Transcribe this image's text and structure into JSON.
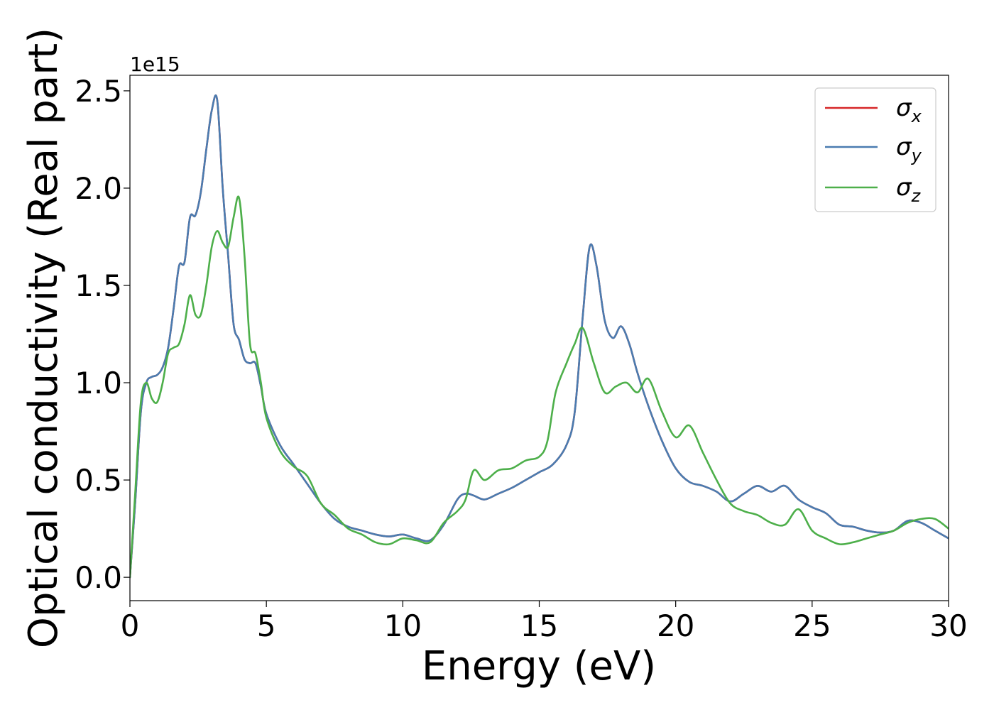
{
  "chart_data": {
    "type": "line",
    "xlabel": "Energy (eV)",
    "ylabel": "Optical conductivity (Real part)",
    "offset_text": "1e15",
    "xlim": [
      0,
      30
    ],
    "ylim": [
      -0.12,
      2.58
    ],
    "y_scale_factor": 1000000000000000.0,
    "xticks": [
      0,
      5,
      10,
      15,
      20,
      25,
      30
    ],
    "xtick_labels": [
      "0",
      "5",
      "10",
      "15",
      "20",
      "25",
      "30"
    ],
    "yticks": [
      0.0,
      0.5,
      1.0,
      1.5,
      2.0,
      2.5
    ],
    "ytick_labels": [
      "0.0",
      "0.5",
      "1.0",
      "1.5",
      "2.0",
      "2.5"
    ],
    "grid": false,
    "legend_position": "top-right",
    "series": [
      {
        "name": "σx",
        "symbol": "σ",
        "subscript": "x",
        "color": "#d62728",
        "x": [
          0,
          0.2,
          0.4,
          0.6,
          0.8,
          1.0,
          1.2,
          1.4,
          1.6,
          1.8,
          2.0,
          2.2,
          2.4,
          2.6,
          2.8,
          3.0,
          3.2,
          3.4,
          3.6,
          3.8,
          4.0,
          4.2,
          4.4,
          4.6,
          4.8,
          5.0,
          5.5,
          6.0,
          6.5,
          7.0,
          7.5,
          8.0,
          8.5,
          9.0,
          9.5,
          10.0,
          10.5,
          11.0,
          11.5,
          12.0,
          12.3,
          12.6,
          13.0,
          13.5,
          14.0,
          14.5,
          15.0,
          15.5,
          16.0,
          16.3,
          16.6,
          16.85,
          17.1,
          17.4,
          17.7,
          18.0,
          18.3,
          18.6,
          19.0,
          19.5,
          20.0,
          20.5,
          21.0,
          21.5,
          22.0,
          22.5,
          23.0,
          23.5,
          24.0,
          24.5,
          25.0,
          25.5,
          26.0,
          26.5,
          27.0,
          27.5,
          28.0,
          28.5,
          29.0,
          29.5,
          30.0
        ],
        "values": [
          0.0,
          0.4,
          0.85,
          1.0,
          1.03,
          1.04,
          1.08,
          1.18,
          1.38,
          1.6,
          1.62,
          1.85,
          1.86,
          1.98,
          2.2,
          2.4,
          2.45,
          2.0,
          1.65,
          1.3,
          1.22,
          1.12,
          1.1,
          1.1,
          0.98,
          0.84,
          0.68,
          0.58,
          0.48,
          0.38,
          0.3,
          0.26,
          0.24,
          0.22,
          0.21,
          0.22,
          0.2,
          0.19,
          0.27,
          0.4,
          0.43,
          0.42,
          0.4,
          0.43,
          0.46,
          0.5,
          0.54,
          0.58,
          0.68,
          0.85,
          1.35,
          1.7,
          1.6,
          1.32,
          1.23,
          1.29,
          1.2,
          1.05,
          0.88,
          0.7,
          0.56,
          0.49,
          0.47,
          0.44,
          0.39,
          0.43,
          0.47,
          0.44,
          0.47,
          0.4,
          0.36,
          0.33,
          0.27,
          0.26,
          0.24,
          0.23,
          0.24,
          0.29,
          0.28,
          0.24,
          0.2
        ]
      },
      {
        "name": "σy",
        "symbol": "σ",
        "subscript": "y",
        "color": "#4a7cb0",
        "x": [
          0,
          0.2,
          0.4,
          0.6,
          0.8,
          1.0,
          1.2,
          1.4,
          1.6,
          1.8,
          2.0,
          2.2,
          2.4,
          2.6,
          2.8,
          3.0,
          3.2,
          3.4,
          3.6,
          3.8,
          4.0,
          4.2,
          4.4,
          4.6,
          4.8,
          5.0,
          5.5,
          6.0,
          6.5,
          7.0,
          7.5,
          8.0,
          8.5,
          9.0,
          9.5,
          10.0,
          10.5,
          11.0,
          11.5,
          12.0,
          12.3,
          12.6,
          13.0,
          13.5,
          14.0,
          14.5,
          15.0,
          15.5,
          16.0,
          16.3,
          16.6,
          16.85,
          17.1,
          17.4,
          17.7,
          18.0,
          18.3,
          18.6,
          19.0,
          19.5,
          20.0,
          20.5,
          21.0,
          21.5,
          22.0,
          22.5,
          23.0,
          23.5,
          24.0,
          24.5,
          25.0,
          25.5,
          26.0,
          26.5,
          27.0,
          27.5,
          28.0,
          28.5,
          29.0,
          29.5,
          30.0
        ],
        "values": [
          0.0,
          0.4,
          0.85,
          1.0,
          1.03,
          1.04,
          1.08,
          1.18,
          1.38,
          1.6,
          1.62,
          1.85,
          1.86,
          1.98,
          2.2,
          2.4,
          2.45,
          2.0,
          1.65,
          1.3,
          1.22,
          1.12,
          1.1,
          1.1,
          0.98,
          0.84,
          0.68,
          0.58,
          0.48,
          0.38,
          0.3,
          0.26,
          0.24,
          0.22,
          0.21,
          0.22,
          0.2,
          0.19,
          0.27,
          0.4,
          0.43,
          0.42,
          0.4,
          0.43,
          0.46,
          0.5,
          0.54,
          0.58,
          0.68,
          0.85,
          1.35,
          1.7,
          1.6,
          1.32,
          1.23,
          1.29,
          1.2,
          1.05,
          0.88,
          0.7,
          0.56,
          0.49,
          0.47,
          0.44,
          0.39,
          0.43,
          0.47,
          0.44,
          0.47,
          0.4,
          0.36,
          0.33,
          0.27,
          0.26,
          0.24,
          0.23,
          0.24,
          0.29,
          0.28,
          0.24,
          0.2
        ]
      },
      {
        "name": "σz",
        "symbol": "σ",
        "subscript": "z",
        "color": "#4daf4a",
        "x": [
          0,
          0.2,
          0.4,
          0.6,
          0.8,
          1.0,
          1.2,
          1.4,
          1.6,
          1.8,
          2.0,
          2.2,
          2.4,
          2.6,
          2.8,
          3.0,
          3.2,
          3.4,
          3.6,
          3.8,
          4.0,
          4.2,
          4.4,
          4.6,
          4.8,
          5.0,
          5.5,
          6.0,
          6.5,
          7.0,
          7.5,
          8.0,
          8.5,
          9.0,
          9.5,
          10.0,
          10.5,
          11.0,
          11.5,
          12.0,
          12.3,
          12.6,
          13.0,
          13.5,
          14.0,
          14.5,
          15.0,
          15.3,
          15.6,
          16.0,
          16.3,
          16.6,
          17.0,
          17.4,
          17.8,
          18.2,
          18.6,
          19.0,
          19.5,
          20.0,
          20.5,
          21.0,
          21.5,
          22.0,
          22.5,
          23.0,
          23.5,
          24.0,
          24.5,
          25.0,
          25.5,
          26.0,
          26.5,
          27.0,
          27.5,
          28.0,
          28.5,
          29.0,
          29.5,
          30.0
        ],
        "values": [
          0.0,
          0.45,
          0.9,
          1.0,
          0.92,
          0.9,
          1.0,
          1.15,
          1.18,
          1.2,
          1.3,
          1.45,
          1.35,
          1.35,
          1.5,
          1.7,
          1.78,
          1.72,
          1.7,
          1.85,
          1.95,
          1.65,
          1.2,
          1.15,
          1.0,
          0.82,
          0.65,
          0.57,
          0.52,
          0.38,
          0.32,
          0.25,
          0.22,
          0.18,
          0.17,
          0.2,
          0.19,
          0.18,
          0.28,
          0.34,
          0.4,
          0.55,
          0.5,
          0.55,
          0.56,
          0.6,
          0.62,
          0.7,
          0.95,
          1.1,
          1.2,
          1.28,
          1.1,
          0.95,
          0.98,
          1.0,
          0.95,
          1.02,
          0.85,
          0.72,
          0.78,
          0.64,
          0.5,
          0.38,
          0.34,
          0.32,
          0.28,
          0.27,
          0.35,
          0.24,
          0.2,
          0.17,
          0.18,
          0.2,
          0.22,
          0.24,
          0.28,
          0.3,
          0.3,
          0.25
        ]
      }
    ]
  }
}
